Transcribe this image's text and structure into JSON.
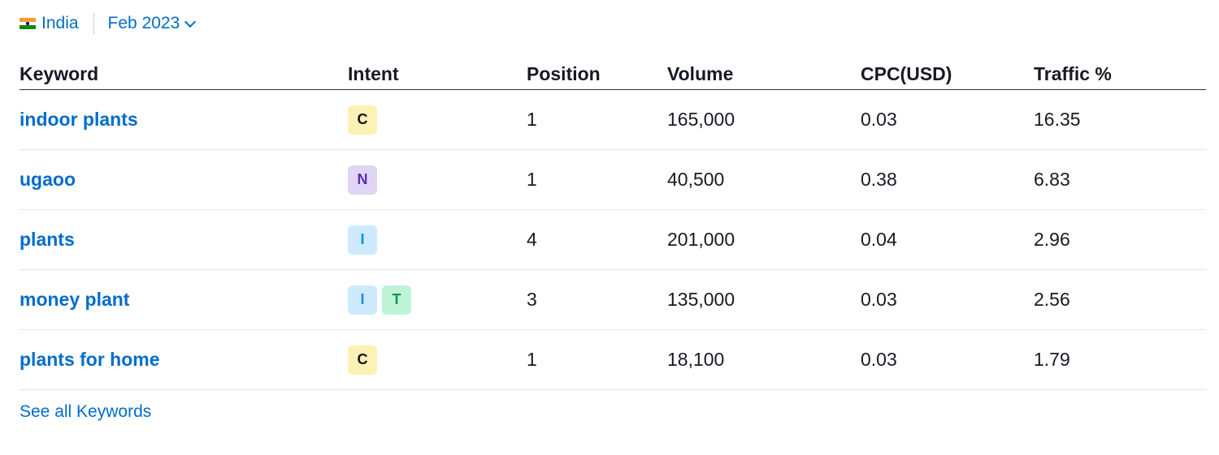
{
  "filters": {
    "country": "India",
    "country_flag_icon": "india-flag-icon",
    "date": "Feb 2023",
    "date_icon": "chevron-down-icon"
  },
  "table": {
    "columns": [
      "Keyword",
      "Intent",
      "Position",
      "Volume",
      "CPC(USD)",
      "Traffic %"
    ],
    "rows": [
      {
        "keyword": "indoor plants",
        "intents": [
          {
            "label": "C",
            "bg": "#fdf0b4",
            "fg": "#121212"
          }
        ],
        "position": "1",
        "volume": "165,000",
        "cpc": "0.03",
        "traffic": "16.35"
      },
      {
        "keyword": "ugaoo",
        "intents": [
          {
            "label": "N",
            "bg": "#e0d5f3",
            "fg": "#5a2fb8"
          }
        ],
        "position": "1",
        "volume": "40,500",
        "cpc": "0.38",
        "traffic": "6.83"
      },
      {
        "keyword": "plants",
        "intents": [
          {
            "label": "I",
            "bg": "#cdeafe",
            "fg": "#0f90e8"
          }
        ],
        "position": "4",
        "volume": "201,000",
        "cpc": "0.04",
        "traffic": "2.96"
      },
      {
        "keyword": "money plant",
        "intents": [
          {
            "label": "I",
            "bg": "#cdeafe",
            "fg": "#0f90e8"
          },
          {
            "label": "T",
            "bg": "#bff3d8",
            "fg": "#0c9a59"
          }
        ],
        "position": "3",
        "volume": "135,000",
        "cpc": "0.03",
        "traffic": "2.56"
      },
      {
        "keyword": "plants for home",
        "intents": [
          {
            "label": "C",
            "bg": "#fdf0b4",
            "fg": "#121212"
          }
        ],
        "position": "1",
        "volume": "18,100",
        "cpc": "0.03",
        "traffic": "1.79"
      }
    ]
  },
  "footer": {
    "see_all_label": "See all Keywords"
  },
  "colors": {
    "link": "#006dca",
    "text": "#171a22",
    "row_border": "#e4e6ea"
  }
}
